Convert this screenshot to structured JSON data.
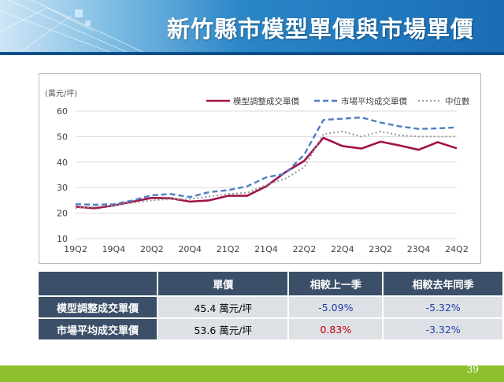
{
  "title": "新竹縣市模型單價與市場單價",
  "page_number": "39",
  "colors": {
    "model": "#a0144b",
    "market": "#4f7fc1",
    "median": "#9a9a9a",
    "negative": "#1f3fa6",
    "positive": "#c00000"
  },
  "chart_data": {
    "type": "line",
    "unit_label": "(萬元/坪)",
    "ylim": [
      10,
      60
    ],
    "yticks": [
      10,
      20,
      30,
      40,
      50,
      60
    ],
    "x": [
      "19Q2",
      "19Q3",
      "19Q4",
      "20Q1",
      "20Q2",
      "20Q3",
      "20Q4",
      "21Q1",
      "21Q2",
      "21Q3",
      "21Q4",
      "22Q1",
      "22Q2",
      "22Q3",
      "22Q4",
      "23Q1",
      "23Q2",
      "23Q3",
      "23Q4",
      "24Q1",
      "24Q2"
    ],
    "xticklabels": [
      "19Q2",
      "",
      "19Q4",
      "",
      "20Q2",
      "",
      "20Q4",
      "",
      "21Q2",
      "",
      "21Q4",
      "",
      "22Q2",
      "",
      "22Q4",
      "",
      "23Q2",
      "",
      "23Q4",
      "",
      "24Q2"
    ],
    "grid": true,
    "legend_position": "top-right",
    "series": [
      {
        "name": "模型調整成交單價",
        "style": "solid",
        "color": "#a0144b",
        "values": [
          22.5,
          21.9,
          23.0,
          24.5,
          26.0,
          25.8,
          24.5,
          25.0,
          26.8,
          26.8,
          30.5,
          36.0,
          40.5,
          49.5,
          46.3,
          45.3,
          48.0,
          46.5,
          44.8,
          47.8,
          45.4
        ]
      },
      {
        "name": "市場平均成交單價",
        "style": "dashed",
        "color": "#4f7fc1",
        "values": [
          23.5,
          23.3,
          23.5,
          25.0,
          27.0,
          27.5,
          26.3,
          28.2,
          29.0,
          30.5,
          34.0,
          35.5,
          43.0,
          56.5,
          57.0,
          57.5,
          55.5,
          54.0,
          53.0,
          53.2,
          53.6
        ]
      },
      {
        "name": "中位數",
        "style": "dotted",
        "color": "#9a9a9a",
        "values": [
          22.0,
          22.5,
          23.0,
          24.0,
          25.0,
          25.5,
          25.5,
          26.5,
          27.5,
          28.0,
          31.0,
          33.5,
          38.0,
          51.0,
          52.0,
          50.0,
          52.0,
          50.5,
          50.0,
          50.0,
          50.0
        ]
      }
    ]
  },
  "table": {
    "headers": [
      "",
      "單價",
      "相較上一季",
      "相較去年同季"
    ],
    "rows": [
      {
        "label": "模型調整成交單價",
        "price": "45.4 萬元/坪",
        "qoq": "-5.09%",
        "yoy": "-5.32%"
      },
      {
        "label": "市場平均成交單價",
        "price": "53.6 萬元/坪",
        "qoq": "0.83%",
        "yoy": "-3.32%"
      }
    ]
  }
}
